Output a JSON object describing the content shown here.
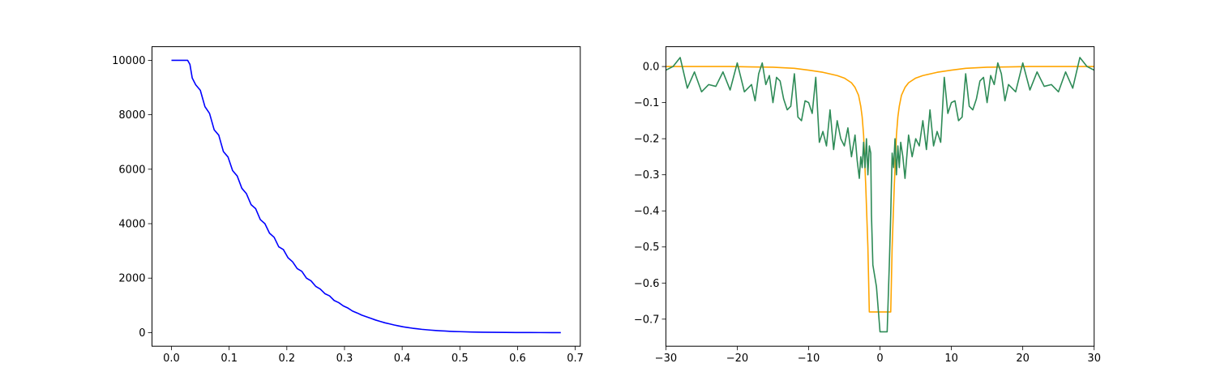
{
  "chart_data": [
    {
      "type": "line",
      "title": "",
      "xlabel": "",
      "ylabel": "",
      "xlim": [
        -0.03375,
        0.70875
      ],
      "ylim": [
        -500,
        10500
      ],
      "xticks": [
        0.0,
        0.1,
        0.2,
        0.3,
        0.4,
        0.5,
        0.6,
        0.7
      ],
      "xtick_labels": [
        "0.0",
        "0.1",
        "0.2",
        "0.3",
        "0.4",
        "0.5",
        "0.6",
        "0.7"
      ],
      "yticks": [
        0,
        2000,
        4000,
        6000,
        8000,
        10000
      ],
      "ytick_labels": [
        "0",
        "2000",
        "4000",
        "6000",
        "8000",
        "10000"
      ],
      "grid": false,
      "series": [
        {
          "color": "#0000ff",
          "x": [
            0.0,
            0.01,
            0.02,
            0.028,
            0.032,
            0.036,
            0.042,
            0.05,
            0.058,
            0.066,
            0.074,
            0.082,
            0.09,
            0.098,
            0.106,
            0.114,
            0.122,
            0.13,
            0.138,
            0.146,
            0.154,
            0.162,
            0.17,
            0.178,
            0.186,
            0.194,
            0.202,
            0.21,
            0.218,
            0.226,
            0.234,
            0.242,
            0.25,
            0.258,
            0.266,
            0.274,
            0.282,
            0.29,
            0.298,
            0.306,
            0.314,
            0.322,
            0.33,
            0.338,
            0.346,
            0.354,
            0.362,
            0.37,
            0.378,
            0.386,
            0.394,
            0.402,
            0.41,
            0.418,
            0.426,
            0.434,
            0.442,
            0.45,
            0.458,
            0.466,
            0.474,
            0.482,
            0.49,
            0.5,
            0.52,
            0.54,
            0.56,
            0.58,
            0.6,
            0.62,
            0.64,
            0.66,
            0.675
          ],
          "y": [
            10000,
            10000,
            10000,
            10000,
            9850,
            9350,
            9100,
            8900,
            8300,
            8050,
            7450,
            7250,
            6650,
            6450,
            5950,
            5750,
            5300,
            5100,
            4700,
            4550,
            4150,
            4000,
            3650,
            3500,
            3150,
            3050,
            2750,
            2600,
            2350,
            2250,
            2000,
            1900,
            1700,
            1600,
            1430,
            1350,
            1180,
            1100,
            980,
            900,
            790,
            720,
            640,
            580,
            520,
            460,
            410,
            360,
            320,
            280,
            245,
            210,
            185,
            160,
            140,
            120,
            105,
            90,
            78,
            66,
            57,
            48,
            41,
            34,
            22,
            14,
            9,
            5,
            3,
            2,
            1,
            0,
            0
          ]
        }
      ]
    },
    {
      "type": "line",
      "title": "",
      "xlabel": "",
      "ylabel": "",
      "xlim": [
        -3.0,
        3.0
      ],
      "ylim": [
        -0.775,
        0.055
      ],
      "x_scale": 10,
      "xticks": [
        -3,
        -2,
        -1,
        0,
        1,
        2,
        3
      ],
      "xtick_labels": [
        "−30",
        "−20",
        "−10",
        "0",
        "10",
        "20",
        "30"
      ],
      "yticks": [
        -0.7,
        -0.6,
        -0.5,
        -0.4,
        -0.3,
        -0.2,
        -0.1,
        0.0
      ],
      "ytick_labels": [
        "−0.7",
        "−0.6",
        "−0.5",
        "−0.4",
        "−0.3",
        "−0.2",
        "−0.1",
        "0.0"
      ],
      "grid": false,
      "series": [
        {
          "color": "#ffa500",
          "x": [
            -3.0,
            -2.7,
            -2.4,
            -2.1,
            -1.8,
            -1.5,
            -1.2,
            -1.0,
            -0.8,
            -0.6,
            -0.5,
            -0.4,
            -0.35,
            -0.3,
            -0.27,
            -0.25,
            -0.23,
            -0.2,
            -0.17,
            -0.15,
            -0.13,
            -0.1,
            -0.05,
            0.0,
            0.05,
            0.1,
            0.13,
            0.15,
            0.17,
            0.2,
            0.23,
            0.25,
            0.27,
            0.3,
            0.35,
            0.4,
            0.5,
            0.6,
            0.8,
            1.0,
            1.2,
            1.5,
            1.8,
            2.1,
            2.4,
            2.7,
            3.0
          ],
          "y": [
            0.0,
            0.0,
            0.0,
            0.0,
            -0.001,
            -0.002,
            -0.005,
            -0.01,
            -0.016,
            -0.025,
            -0.032,
            -0.045,
            -0.058,
            -0.08,
            -0.11,
            -0.14,
            -0.19,
            -0.33,
            -0.5,
            -0.68,
            -0.68,
            -0.68,
            -0.68,
            -0.68,
            -0.68,
            -0.68,
            -0.68,
            -0.68,
            -0.5,
            -0.33,
            -0.19,
            -0.14,
            -0.11,
            -0.08,
            -0.058,
            -0.045,
            -0.032,
            -0.025,
            -0.016,
            -0.01,
            -0.005,
            -0.002,
            -0.001,
            0.0,
            0.0,
            0.0,
            0.0
          ]
        },
        {
          "color": "#2e8b57",
          "x": [
            -3.0,
            -2.9,
            -2.8,
            -2.7,
            -2.6,
            -2.5,
            -2.4,
            -2.3,
            -2.2,
            -2.1,
            -2.0,
            -1.9,
            -1.8,
            -1.75,
            -1.7,
            -1.65,
            -1.6,
            -1.55,
            -1.5,
            -1.45,
            -1.4,
            -1.35,
            -1.3,
            -1.25,
            -1.2,
            -1.15,
            -1.1,
            -1.05,
            -1.0,
            -0.95,
            -0.9,
            -0.85,
            -0.8,
            -0.75,
            -0.7,
            -0.65,
            -0.6,
            -0.55,
            -0.5,
            -0.45,
            -0.4,
            -0.35,
            -0.32,
            -0.29,
            -0.27,
            -0.25,
            -0.23,
            -0.21,
            -0.19,
            -0.17,
            -0.15,
            -0.13,
            -0.12,
            -0.1,
            -0.05,
            0.0,
            0.05,
            0.1,
            0.12,
            0.13,
            0.15,
            0.17,
            0.19,
            0.21,
            0.23,
            0.25,
            0.27,
            0.29,
            0.32,
            0.35,
            0.4,
            0.45,
            0.5,
            0.55,
            0.6,
            0.65,
            0.7,
            0.75,
            0.8,
            0.85,
            0.9,
            0.95,
            1.0,
            1.05,
            1.1,
            1.15,
            1.2,
            1.25,
            1.3,
            1.35,
            1.4,
            1.45,
            1.5,
            1.55,
            1.6,
            1.65,
            1.7,
            1.75,
            1.8,
            1.9,
            2.0,
            2.1,
            2.2,
            2.3,
            2.4,
            2.5,
            2.6,
            2.7,
            2.8,
            2.9,
            3.0
          ],
          "y": [
            -0.01,
            0.0,
            0.025,
            -0.06,
            -0.015,
            -0.07,
            -0.05,
            -0.055,
            -0.015,
            -0.065,
            0.01,
            -0.07,
            -0.05,
            -0.095,
            -0.02,
            0.01,
            -0.05,
            -0.025,
            -0.1,
            -0.03,
            -0.04,
            -0.09,
            -0.12,
            -0.11,
            -0.02,
            -0.14,
            -0.15,
            -0.095,
            -0.1,
            -0.13,
            -0.03,
            -0.21,
            -0.18,
            -0.22,
            -0.12,
            -0.23,
            -0.15,
            -0.2,
            -0.22,
            -0.17,
            -0.25,
            -0.19,
            -0.26,
            -0.31,
            -0.25,
            -0.28,
            -0.21,
            -0.28,
            -0.2,
            -0.3,
            -0.22,
            -0.24,
            -0.41,
            -0.55,
            -0.61,
            -0.735,
            -0.735,
            -0.735,
            -0.61,
            -0.55,
            -0.41,
            -0.24,
            -0.28,
            -0.2,
            -0.3,
            -0.22,
            -0.28,
            -0.21,
            -0.25,
            -0.31,
            -0.19,
            -0.25,
            -0.2,
            -0.22,
            -0.15,
            -0.23,
            -0.12,
            -0.22,
            -0.18,
            -0.21,
            -0.03,
            -0.13,
            -0.1,
            -0.095,
            -0.15,
            -0.14,
            -0.02,
            -0.11,
            -0.12,
            -0.09,
            -0.04,
            -0.03,
            -0.1,
            -0.025,
            -0.05,
            0.01,
            -0.02,
            -0.095,
            -0.05,
            -0.07,
            0.01,
            -0.065,
            -0.015,
            -0.055,
            -0.05,
            -0.07,
            -0.015,
            -0.06,
            0.025,
            0.0,
            -0.01
          ]
        }
      ]
    }
  ]
}
